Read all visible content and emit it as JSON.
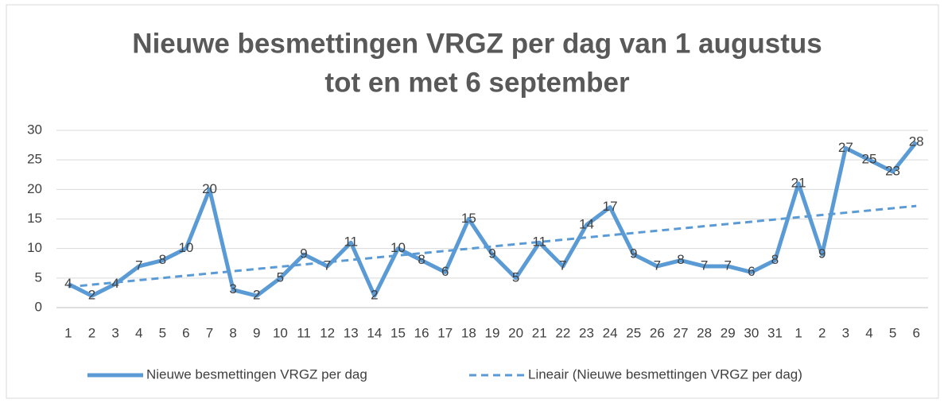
{
  "chart_data": {
    "type": "line",
    "title": [
      "Nieuwe besmettingen VRGZ per dag van 1 augustus",
      "tot en met 6 september"
    ],
    "categories": [
      "1",
      "2",
      "3",
      "4",
      "5",
      "6",
      "7",
      "8",
      "9",
      "10",
      "11",
      "12",
      "13",
      "14",
      "15",
      "16",
      "17",
      "18",
      "19",
      "20",
      "21",
      "22",
      "23",
      "24",
      "25",
      "26",
      "27",
      "28",
      "29",
      "30",
      "31",
      "1",
      "2",
      "3",
      "4",
      "5",
      "6"
    ],
    "series": [
      {
        "name": "Nieuwe besmettingen VRGZ per dag",
        "color": "#5b9bd5",
        "values": [
          4,
          2,
          4,
          7,
          8,
          10,
          20,
          3,
          2,
          5,
          9,
          7,
          11,
          2,
          10,
          8,
          6,
          15,
          9,
          5,
          11,
          7,
          14,
          17,
          9,
          7,
          8,
          7,
          7,
          6,
          8,
          21,
          9,
          27,
          25,
          23,
          28
        ]
      }
    ],
    "trend": {
      "name": "Lineair (Nieuwe besmettingen VRGZ per dag)",
      "color": "#5b9bd5",
      "start": 3.5,
      "end": 17.2
    },
    "ylim": [
      0,
      30
    ],
    "yticks": [
      0,
      5,
      10,
      15,
      20,
      25,
      30
    ],
    "grid": true,
    "legend": "bottom"
  }
}
